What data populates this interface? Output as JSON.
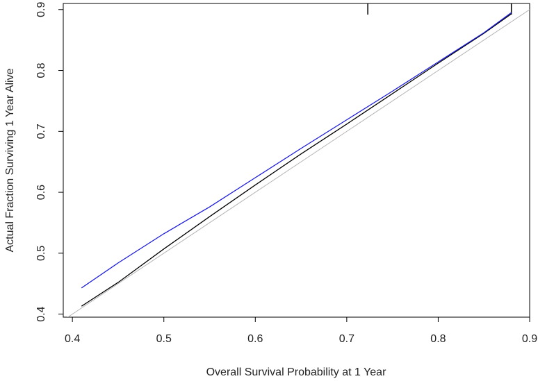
{
  "chart_data": {
    "type": "line",
    "title": "",
    "xlabel": "Overall Survival Probability at 1 Year",
    "ylabel": "Actual Fraction Surviving 1 Year Alive",
    "xlim": [
      0.39,
      0.9
    ],
    "ylim": [
      0.395,
      0.91
    ],
    "xticks": [
      0.4,
      0.5,
      0.6,
      0.7,
      0.8,
      0.9
    ],
    "yticks": [
      0.4,
      0.5,
      0.6,
      0.7,
      0.8,
      0.9
    ],
    "xtick_labels": [
      "0.4",
      "0.5",
      "0.6",
      "0.7",
      "0.8",
      "0.9"
    ],
    "ytick_labels": [
      "0.4",
      "0.5",
      "0.6",
      "0.7",
      "0.8",
      "0.9"
    ],
    "grid": false,
    "legend": "none",
    "rug_x": [
      0.723,
      0.88
    ],
    "series": [
      {
        "color": "#b4b4b4",
        "points": [
          [
            0.39,
            0.39
          ],
          [
            0.9,
            0.9
          ]
        ]
      },
      {
        "color": "#000000",
        "points": [
          [
            0.41,
            0.413
          ],
          [
            0.45,
            0.452
          ],
          [
            0.5,
            0.507
          ],
          [
            0.55,
            0.56
          ],
          [
            0.6,
            0.612
          ],
          [
            0.65,
            0.663
          ],
          [
            0.7,
            0.712
          ],
          [
            0.75,
            0.762
          ],
          [
            0.8,
            0.812
          ],
          [
            0.85,
            0.861
          ],
          [
            0.88,
            0.893
          ]
        ]
      },
      {
        "color": "#1a1adb",
        "points": [
          [
            0.41,
            0.443
          ],
          [
            0.45,
            0.484
          ],
          [
            0.5,
            0.532
          ],
          [
            0.55,
            0.576
          ],
          [
            0.6,
            0.624
          ],
          [
            0.65,
            0.672
          ],
          [
            0.7,
            0.719
          ],
          [
            0.75,
            0.766
          ],
          [
            0.8,
            0.814
          ],
          [
            0.85,
            0.862
          ],
          [
            0.88,
            0.895
          ]
        ]
      }
    ]
  }
}
